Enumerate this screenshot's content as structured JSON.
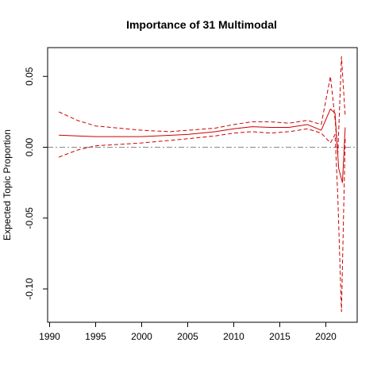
{
  "chart_data": {
    "type": "line",
    "title": "Importance of 31 Multimodal",
    "xlabel": "",
    "ylabel": "Expected Topic Proportion",
    "xlim": [
      1990,
      2023
    ],
    "ylim": [
      -0.12,
      0.07
    ],
    "x_ticks": [
      1990,
      1995,
      2000,
      2005,
      2010,
      2015,
      2020
    ],
    "y_ticks": [
      -0.1,
      -0.05,
      0.0,
      0.05
    ],
    "y_tick_labels": [
      "-0.10",
      "-0.05",
      "0.00",
      "0.05"
    ],
    "reference_line": 0,
    "colors": {
      "series": "#cc0000",
      "reference": "#888888",
      "axis": "#000000"
    },
    "series": [
      {
        "role": "estimate",
        "style": "solid",
        "x": [
          1991,
          1993,
          1995,
          2000,
          2005,
          2008,
          2010,
          2012,
          2014,
          2016,
          2018,
          2019.5,
          2020.5,
          2021,
          2021.4,
          2021.8,
          2022.1
        ],
        "y": [
          0.0085,
          0.008,
          0.0075,
          0.0075,
          0.009,
          0.011,
          0.013,
          0.0145,
          0.014,
          0.014,
          0.016,
          0.012,
          0.027,
          0.024,
          -0.015,
          -0.025,
          0.014
        ]
      },
      {
        "role": "upper",
        "style": "dashed",
        "x": [
          1991,
          1993,
          1995,
          2000,
          2003,
          2008,
          2010,
          2012,
          2014,
          2016,
          2018,
          2019.5,
          2020.5,
          2021,
          2021.3,
          2021.7,
          2022.1
        ],
        "y": [
          0.025,
          0.019,
          0.015,
          0.012,
          0.011,
          0.0135,
          0.016,
          0.018,
          0.018,
          0.017,
          0.019,
          0.016,
          0.05,
          0.02,
          -0.005,
          0.064,
          0.022
        ]
      },
      {
        "role": "lower",
        "style": "dashed",
        "x": [
          1991,
          1993,
          1995,
          2000,
          2005,
          2008,
          2010,
          2012,
          2014,
          2016,
          2018,
          2019.5,
          2020.5,
          2021,
          2021.3,
          2021.7,
          2022.1
        ],
        "y": [
          -0.007,
          -0.002,
          0.001,
          0.003,
          0.006,
          0.008,
          0.01,
          0.011,
          0.01,
          0.011,
          0.013,
          0.01,
          0.003,
          0.009,
          -0.035,
          -0.116,
          0.006
        ]
      }
    ]
  }
}
